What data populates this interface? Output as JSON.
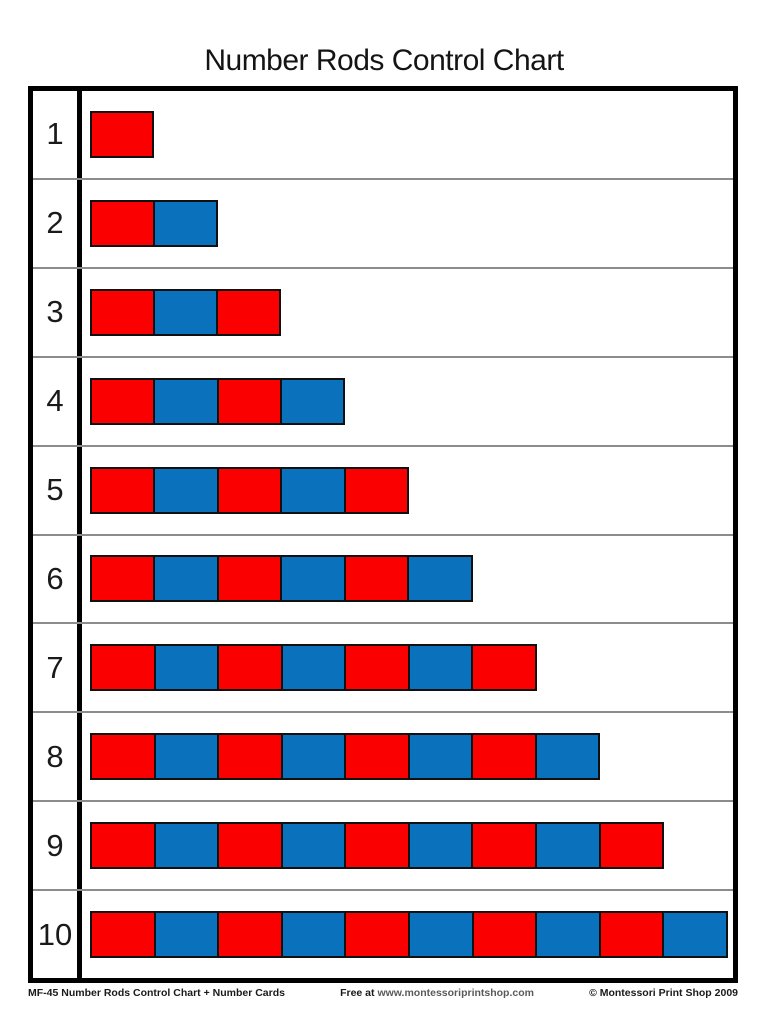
{
  "title": "Number Rods Control Chart",
  "colors": {
    "red": "#fb0000",
    "blue": "#0a72bc"
  },
  "rows": [
    {
      "label": "1",
      "segments": [
        "red"
      ]
    },
    {
      "label": "2",
      "segments": [
        "red",
        "blue"
      ]
    },
    {
      "label": "3",
      "segments": [
        "red",
        "blue",
        "red"
      ]
    },
    {
      "label": "4",
      "segments": [
        "red",
        "blue",
        "red",
        "blue"
      ]
    },
    {
      "label": "5",
      "segments": [
        "red",
        "blue",
        "red",
        "blue",
        "red"
      ]
    },
    {
      "label": "6",
      "segments": [
        "red",
        "blue",
        "red",
        "blue",
        "red",
        "blue"
      ]
    },
    {
      "label": "7",
      "segments": [
        "red",
        "blue",
        "red",
        "blue",
        "red",
        "blue",
        "red"
      ]
    },
    {
      "label": "8",
      "segments": [
        "red",
        "blue",
        "red",
        "blue",
        "red",
        "blue",
        "red",
        "blue"
      ]
    },
    {
      "label": "9",
      "segments": [
        "red",
        "blue",
        "red",
        "blue",
        "red",
        "blue",
        "red",
        "blue",
        "red"
      ]
    },
    {
      "label": "10",
      "segments": [
        "red",
        "blue",
        "red",
        "blue",
        "red",
        "blue",
        "red",
        "blue",
        "red",
        "blue"
      ]
    }
  ],
  "footer": {
    "left": "MF-45 Number Rods Control Chart + Number Cards",
    "center_prefix": "Free at ",
    "center_url": "www.montessoriprintshop.com",
    "right": "© Montessori Print Shop 2009"
  },
  "chart_data": {
    "type": "bar",
    "orientation": "horizontal",
    "title": "Number Rods Control Chart",
    "categories": [
      "1",
      "2",
      "3",
      "4",
      "5",
      "6",
      "7",
      "8",
      "9",
      "10"
    ],
    "values": [
      1,
      2,
      3,
      4,
      5,
      6,
      7,
      8,
      9,
      10
    ],
    "xlabel": "",
    "ylabel": "",
    "xlim": [
      0,
      10
    ],
    "grid": false,
    "legend": "none",
    "bar_style": "each bar is divided into unit segments of alternating colors starting with red",
    "segment_colors": [
      "#fb0000",
      "#0a72bc"
    ]
  }
}
